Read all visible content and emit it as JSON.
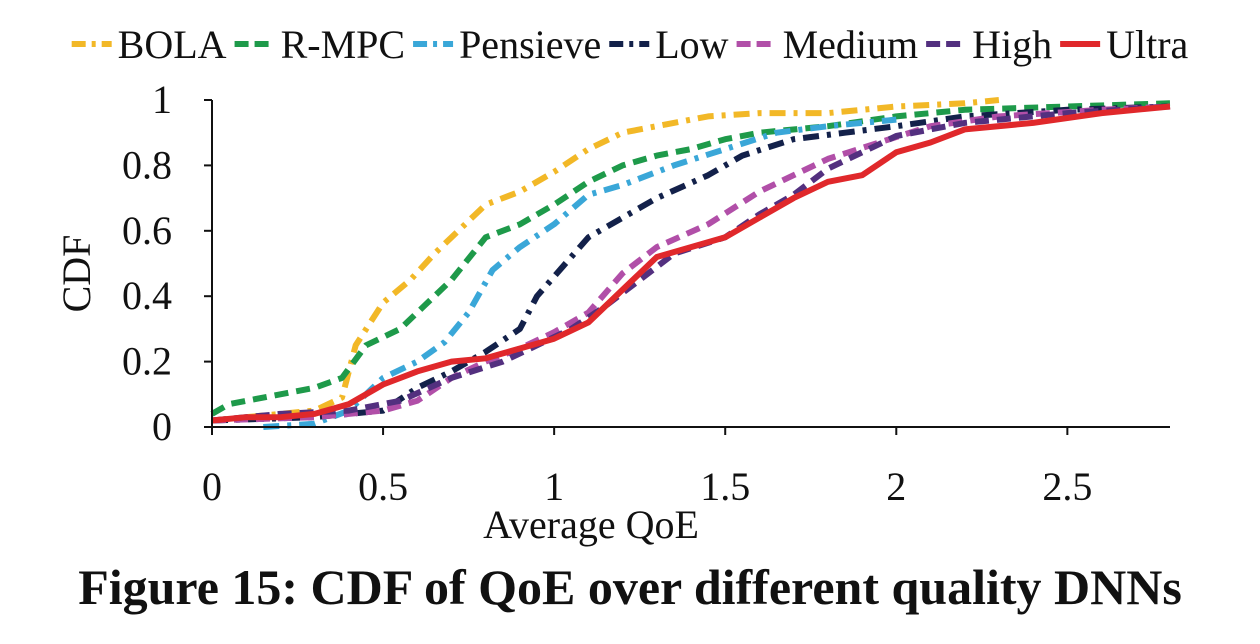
{
  "caption": "Figure 15: CDF of QoE over different quality DNNs",
  "chart_data": {
    "type": "line",
    "xlabel": "Average QoE",
    "ylabel": "CDF",
    "xlim": [
      0,
      2.8
    ],
    "ylim": [
      0,
      1
    ],
    "xticks": [
      "0",
      "0.5",
      "1",
      "1.5",
      "2",
      "2.5"
    ],
    "yticks": [
      "0",
      "0.2",
      "0.4",
      "0.6",
      "0.8",
      "1"
    ],
    "grid": false,
    "legend_position": "top",
    "series": [
      {
        "name": "BOLA",
        "color": "#f2b827",
        "dash": "dashdot",
        "x": [
          0.0,
          0.1,
          0.2,
          0.3,
          0.38,
          0.42,
          0.5,
          0.58,
          0.65,
          0.72,
          0.8,
          0.9,
          1.0,
          1.1,
          1.2,
          1.3,
          1.45,
          1.6,
          1.8,
          2.0,
          2.2,
          2.3
        ],
        "y": [
          0.02,
          0.03,
          0.04,
          0.05,
          0.09,
          0.25,
          0.38,
          0.45,
          0.53,
          0.6,
          0.68,
          0.72,
          0.78,
          0.85,
          0.9,
          0.92,
          0.95,
          0.96,
          0.96,
          0.98,
          0.99,
          1.0
        ]
      },
      {
        "name": "R-MPC",
        "color": "#1e9a4a",
        "dash": "dash",
        "x": [
          0.0,
          0.05,
          0.2,
          0.3,
          0.38,
          0.45,
          0.55,
          0.62,
          0.7,
          0.8,
          0.9,
          1.0,
          1.1,
          1.2,
          1.3,
          1.4,
          1.5,
          1.6,
          1.8,
          2.0,
          2.2,
          2.5,
          2.8
        ],
        "y": [
          0.04,
          0.07,
          0.1,
          0.12,
          0.15,
          0.25,
          0.3,
          0.37,
          0.45,
          0.58,
          0.62,
          0.68,
          0.75,
          0.8,
          0.83,
          0.85,
          0.88,
          0.9,
          0.92,
          0.95,
          0.97,
          0.98,
          0.99
        ]
      },
      {
        "name": "Pensieve",
        "color": "#3aa7d8",
        "dash": "dashdot",
        "x": [
          0.15,
          0.3,
          0.4,
          0.5,
          0.6,
          0.68,
          0.75,
          0.82,
          0.9,
          1.0,
          1.1,
          1.2,
          1.35,
          1.5,
          1.65,
          1.8,
          2.0
        ],
        "y": [
          0.0,
          0.01,
          0.05,
          0.15,
          0.2,
          0.26,
          0.35,
          0.48,
          0.55,
          0.62,
          0.71,
          0.74,
          0.8,
          0.85,
          0.9,
          0.92,
          0.94
        ]
      },
      {
        "name": "Low",
        "color": "#13214a",
        "dash": "dashdot",
        "x": [
          0.0,
          0.3,
          0.5,
          0.6,
          0.7,
          0.8,
          0.9,
          0.95,
          1.0,
          1.1,
          1.2,
          1.3,
          1.45,
          1.55,
          1.7,
          1.85,
          2.0,
          2.2,
          2.5,
          2.8
        ],
        "y": [
          0.02,
          0.03,
          0.05,
          0.12,
          0.17,
          0.23,
          0.3,
          0.4,
          0.46,
          0.58,
          0.64,
          0.7,
          0.77,
          0.83,
          0.88,
          0.9,
          0.92,
          0.95,
          0.97,
          0.98
        ]
      },
      {
        "name": "Medium",
        "color": "#b14fa8",
        "dash": "dash",
        "x": [
          0.0,
          0.3,
          0.5,
          0.6,
          0.7,
          0.8,
          0.9,
          1.0,
          1.1,
          1.2,
          1.3,
          1.45,
          1.6,
          1.7,
          1.8,
          1.95,
          2.1,
          2.3,
          2.6,
          2.8
        ],
        "y": [
          0.02,
          0.03,
          0.05,
          0.08,
          0.15,
          0.2,
          0.24,
          0.29,
          0.35,
          0.47,
          0.55,
          0.62,
          0.72,
          0.77,
          0.82,
          0.87,
          0.92,
          0.95,
          0.97,
          0.98
        ]
      },
      {
        "name": "High",
        "color": "#53307f",
        "dash": "dash",
        "x": [
          0.0,
          0.2,
          0.4,
          0.55,
          0.7,
          0.85,
          0.95,
          1.05,
          1.15,
          1.25,
          1.35,
          1.5,
          1.6,
          1.7,
          1.8,
          1.9,
          2.0,
          2.2,
          2.5,
          2.8
        ],
        "y": [
          0.02,
          0.04,
          0.05,
          0.08,
          0.15,
          0.2,
          0.25,
          0.3,
          0.37,
          0.45,
          0.53,
          0.58,
          0.65,
          0.71,
          0.79,
          0.84,
          0.89,
          0.93,
          0.96,
          0.98
        ]
      },
      {
        "name": "Ultra",
        "color": "#e0282b",
        "dash": "solid",
        "x": [
          0.0,
          0.1,
          0.2,
          0.3,
          0.4,
          0.5,
          0.6,
          0.7,
          0.8,
          0.9,
          1.0,
          1.1,
          1.2,
          1.3,
          1.4,
          1.5,
          1.6,
          1.7,
          1.8,
          1.9,
          2.0,
          2.1,
          2.2,
          2.4,
          2.6,
          2.8
        ],
        "y": [
          0.02,
          0.03,
          0.03,
          0.04,
          0.07,
          0.13,
          0.17,
          0.2,
          0.21,
          0.24,
          0.27,
          0.32,
          0.42,
          0.52,
          0.55,
          0.58,
          0.64,
          0.7,
          0.75,
          0.77,
          0.84,
          0.87,
          0.91,
          0.93,
          0.96,
          0.98
        ]
      }
    ]
  }
}
